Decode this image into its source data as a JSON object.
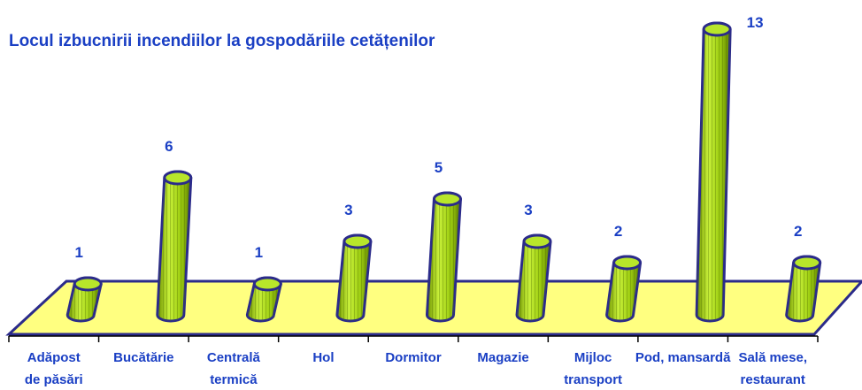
{
  "chart_data": {
    "type": "bar3d",
    "title": "Locul izbucnirii incendiilor la gospodăriile cetățenilor",
    "categories": [
      "Adăpost\nde păsări",
      "Bucătărie",
      "Centrală\ntermică",
      "Hol",
      "Dormitor",
      "Magazie",
      "Mijloc\ntransport",
      "Pod, mansardă",
      "Sală mese,\nrestaurant"
    ],
    "values": [
      1,
      6,
      1,
      3,
      5,
      3,
      2,
      13,
      2
    ],
    "color": "#99cc00",
    "ylim": [
      0,
      13
    ]
  }
}
